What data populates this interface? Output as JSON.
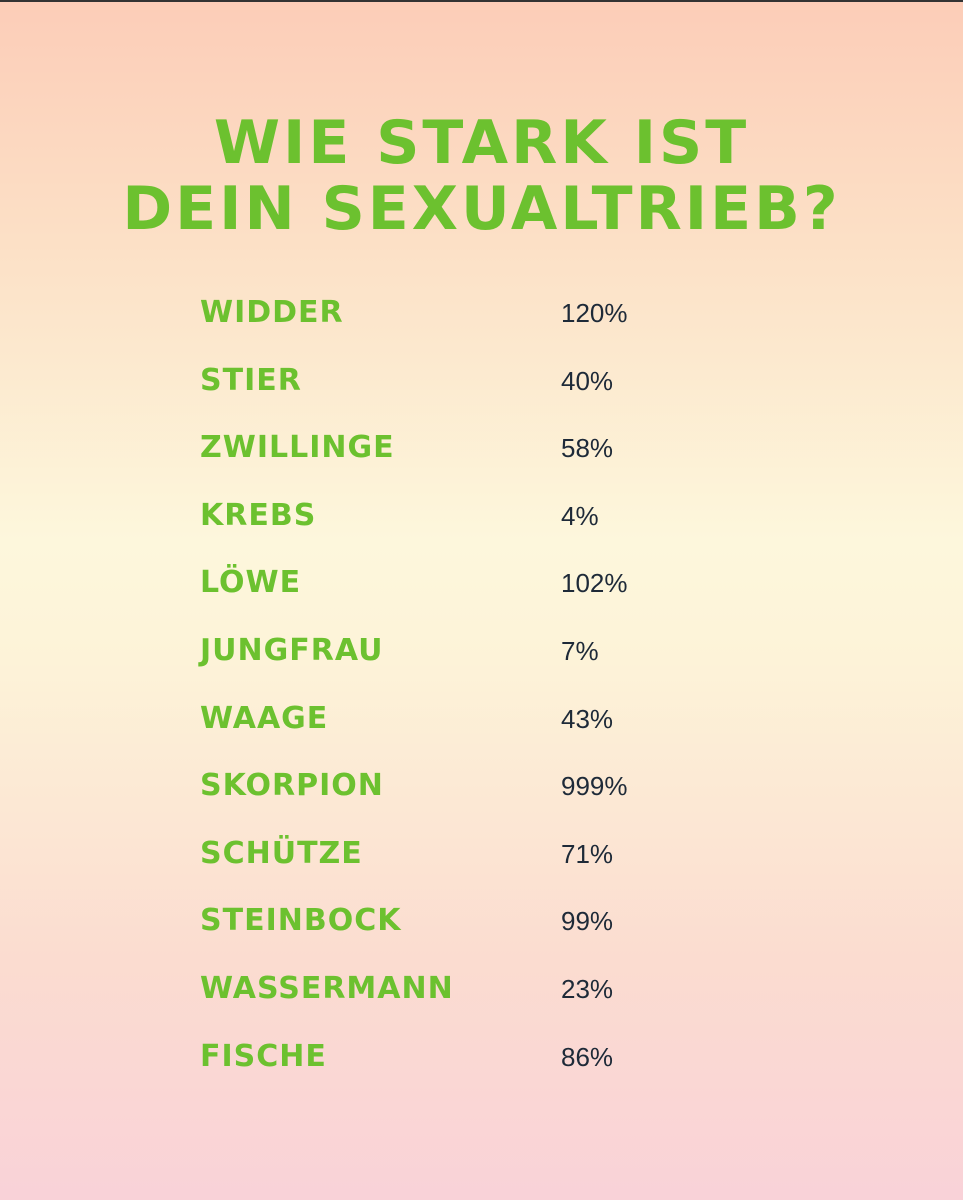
{
  "title": {
    "lines": [
      "WIE STARK IST",
      "DEIN SEXUALTRIEB?"
    ]
  },
  "table": {
    "rows": [
      [
        "WIDDER",
        "120%"
      ],
      [
        "STIER",
        "40%"
      ],
      [
        "ZWILLINGE",
        "58%"
      ],
      [
        "KREBS",
        "4%"
      ],
      [
        "LÖWE",
        "102%"
      ],
      [
        "JUNGFRAU",
        "7%"
      ],
      [
        "WAAGE",
        "43%"
      ],
      [
        "SKORPION",
        "999%"
      ],
      [
        "SCHÜTZE",
        "71%"
      ],
      [
        "STEINBOCK",
        "99%"
      ],
      [
        "WASSERMANN",
        "23%"
      ],
      [
        "FISCHE",
        "86%"
      ]
    ]
  }
}
